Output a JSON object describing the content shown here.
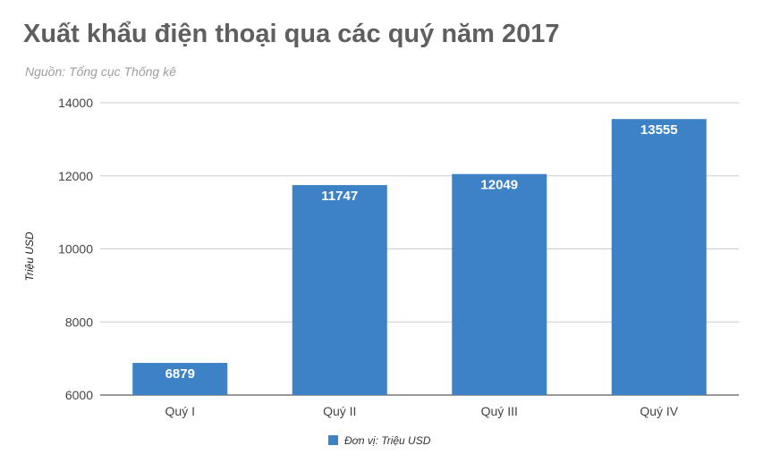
{
  "title": "Xuất khẩu điện thoại qua các quý năm 2017",
  "subtitle": "Nguồn: Tổng cục Thống kê",
  "colors": {
    "bar": "#3d82c6",
    "grid": "#cccccc",
    "text": "#5f5f5f"
  },
  "chart_data": {
    "type": "bar",
    "categories": [
      "Quý I",
      "Quý II",
      "Quý III",
      "Quý IV"
    ],
    "series": [
      {
        "name": "Đơn vị: Triệu USD",
        "values": [
          6879,
          11747,
          12049,
          13555
        ]
      }
    ],
    "ylabel": "Triệu USD",
    "xlabel": "",
    "ylim": [
      6000,
      14000
    ],
    "yticks": [
      6000,
      8000,
      10000,
      12000,
      14000
    ],
    "grid": true,
    "legend_position": "bottom",
    "data_labels": true
  }
}
